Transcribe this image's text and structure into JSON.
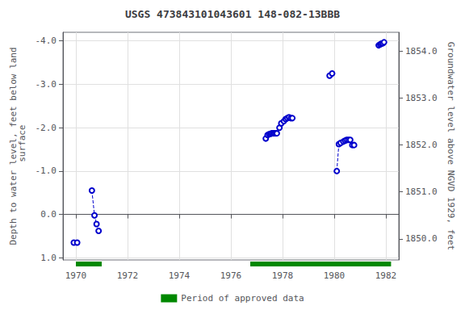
{
  "chart_data": {
    "type": "line",
    "title": "USGS 473843101043601 148-082-13BBB",
    "ylabel": "Depth to water level, feet below land\n surface",
    "y2label": "Groundwater level above NGVD 1929, feet",
    "xlim": [
      1969.5,
      1982.5
    ],
    "xticks": [
      1970,
      1972,
      1974,
      1976,
      1978,
      1980,
      1982
    ],
    "ylim": [
      1.05,
      -4.2
    ],
    "yticks": [
      {
        "value": 1.0,
        "label": "1.0"
      },
      {
        "value": 0.0,
        "label": "0.0"
      },
      {
        "value": -1.0,
        "label": "-1.0"
      },
      {
        "value": -2.0,
        "label": "-2.0"
      },
      {
        "value": -3.0,
        "label": "-3.0"
      },
      {
        "value": -4.0,
        "label": "-4.0"
      }
    ],
    "y2lim": [
      1849.55,
      1854.4
    ],
    "y2ticks": [
      {
        "value": 1850.0,
        "label": "1850.0"
      },
      {
        "value": 1851.0,
        "label": "1851.0"
      },
      {
        "value": 1852.0,
        "label": "1852.0"
      },
      {
        "value": 1853.0,
        "label": "1853.0"
      },
      {
        "value": 1854.0,
        "label": "1854.0"
      }
    ],
    "grid": true,
    "legend": "bottom",
    "series": [
      {
        "color": "#0000cc",
        "marker": "open_circle",
        "line_style": "dashed",
        "x": [
          1969.92,
          1970.05
        ],
        "values": [
          0.65,
          0.65
        ]
      },
      {
        "color": "#0000cc",
        "marker": "open_circle",
        "line_style": "dashed",
        "x": [
          1970.62,
          1970.72,
          1970.8,
          1970.88
        ],
        "values": [
          -0.55,
          0.02,
          0.22,
          0.38
        ]
      },
      {
        "color": "#0000cc",
        "marker": "open_circle",
        "line_style": "dashed",
        "x": [
          1977.35,
          1977.42,
          1977.48,
          1977.53,
          1977.58,
          1977.63,
          1977.68,
          1977.73,
          1977.78
        ],
        "values": [
          -1.75,
          -1.83,
          -1.85,
          -1.86,
          -1.87,
          -1.87,
          -1.87,
          -1.87,
          -1.87
        ]
      },
      {
        "color": "#0000cc",
        "marker": "open_circle",
        "line_style": "dashed",
        "x": [
          1977.88,
          1977.95,
          1978.05,
          1978.12,
          1978.18,
          1978.25,
          1978.32,
          1978.38
        ],
        "values": [
          -2.0,
          -2.1,
          -2.15,
          -2.2,
          -2.22,
          -2.24,
          -2.22,
          -2.22
        ]
      },
      {
        "color": "#0000cc",
        "marker": "open_circle",
        "line_style": "dashed",
        "x": [
          1979.82,
          1979.92
        ],
        "values": [
          -3.2,
          -3.25
        ]
      },
      {
        "color": "#0000cc",
        "marker": "open_circle",
        "line_style": "dashed",
        "x": [
          1980.1,
          1980.18,
          1980.25,
          1980.35,
          1980.42,
          1980.48,
          1980.55,
          1980.62,
          1980.7,
          1980.77
        ],
        "values": [
          -1.0,
          -1.62,
          -1.65,
          -1.68,
          -1.7,
          -1.72,
          -1.72,
          -1.72,
          -1.6,
          -1.6
        ]
      },
      {
        "color": "#0000cc",
        "marker": "open_circle",
        "line_style": "dashed",
        "x": [
          1981.72,
          1981.78,
          1981.83,
          1981.88,
          1981.93
        ],
        "values": [
          -3.9,
          -3.92,
          -3.94,
          -3.95,
          -3.97
        ]
      }
    ],
    "approved_periods": {
      "name": "Period of approved data",
      "color": "#008800",
      "periods": [
        [
          1970.0,
          1971.0
        ],
        [
          1976.75,
          1982.2
        ]
      ]
    }
  }
}
